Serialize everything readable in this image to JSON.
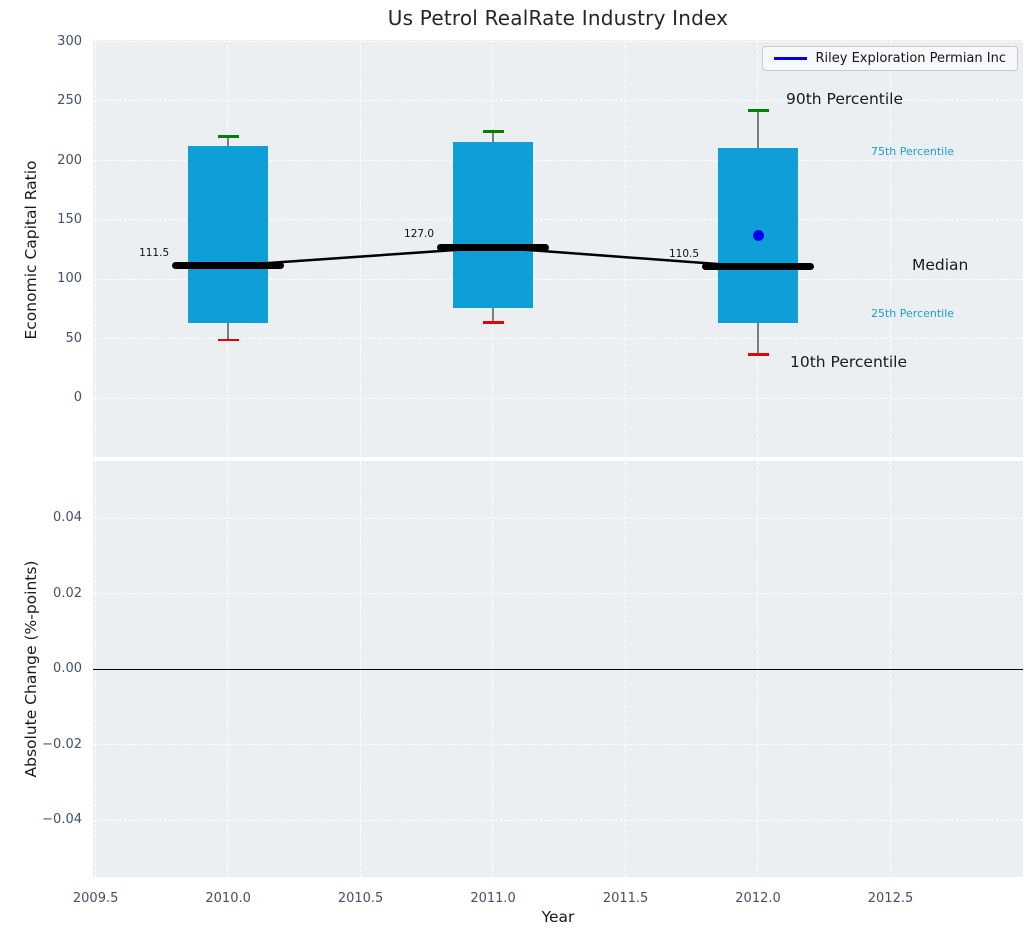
{
  "title": "Us Petrol RealRate Industry Index",
  "colors": {
    "box_fill": "#0f9fd8",
    "median_line": "#000000",
    "p90_cap": "#008000",
    "p10_cap": "#e80000",
    "whisker": "#7d7d7d",
    "company_line": "#0000ee",
    "axes_background": "#eceff1",
    "grid": "#ffffff",
    "tick_label": "#43506b",
    "zero_line": "#000000",
    "percentile_label": "#1b9ed8"
  },
  "chart_data": [
    {
      "type": "box",
      "title": "Us Petrol RealRate Industry Index",
      "ylabel": "Economic Capital Ratio",
      "x": [
        2010,
        2011,
        2012
      ],
      "box_width": 0.3,
      "series": [
        {
          "name": "90th Percentile",
          "values": [
            220,
            224.5,
            242
          ]
        },
        {
          "name": "75th Percentile",
          "values": [
            212,
            215.5,
            210.5
          ]
        },
        {
          "name": "Median",
          "values": [
            111.5,
            127.0,
            110.5
          ]
        },
        {
          "name": "25th Percentile",
          "values": [
            63,
            76,
            63.5
          ]
        },
        {
          "name": "10th Percentile",
          "values": [
            49,
            64,
            37
          ]
        }
      ],
      "median_labels": [
        "111.5",
        "127.0",
        "110.5"
      ],
      "company_series": {
        "name": "Riley Exploration Permian Inc",
        "points": [
          {
            "x": 2012,
            "y": 137
          }
        ]
      },
      "annotations": {
        "p90": "90th Percentile",
        "p75": "75th Percentile",
        "median": "Median",
        "p25": "25th Percentile",
        "p10": "10th Percentile"
      },
      "legend": {
        "entries": [
          "Riley Exploration Permian Inc"
        ],
        "position": "upper right"
      },
      "ylim": [
        -49.3,
        301.4
      ],
      "ytick_values": [
        300,
        250,
        200,
        150,
        100,
        50,
        0
      ],
      "ytick_labels": [
        "300",
        "250",
        "200",
        "150",
        "100",
        "50",
        "0"
      ],
      "xlim": [
        2009.49,
        2013.0
      ],
      "xtick_values": [
        2009.5,
        2010.0,
        2010.5,
        2011.0,
        2011.5,
        2012.0,
        2012.5
      ],
      "grid": true
    },
    {
      "type": "line",
      "ylabel": "Absolute Change (%-points)",
      "xlabel": "Year",
      "series": [],
      "zero_line": 0.0,
      "ylim": [
        -0.055,
        0.0552
      ],
      "ytick_values": [
        0.04,
        0.02,
        0.0,
        -0.02,
        -0.04
      ],
      "ytick_labels": [
        "0.04",
        "0.02",
        "0.00",
        "−0.02",
        "−0.04"
      ],
      "xlim": [
        2009.49,
        2013.0
      ],
      "xtick_values": [
        2009.5,
        2010.0,
        2010.5,
        2011.0,
        2011.5,
        2012.0,
        2012.5
      ],
      "xtick_labels": [
        "2009.5",
        "2010.0",
        "2010.5",
        "2011.0",
        "2011.5",
        "2012.0",
        "2012.5"
      ],
      "grid": true
    }
  ]
}
